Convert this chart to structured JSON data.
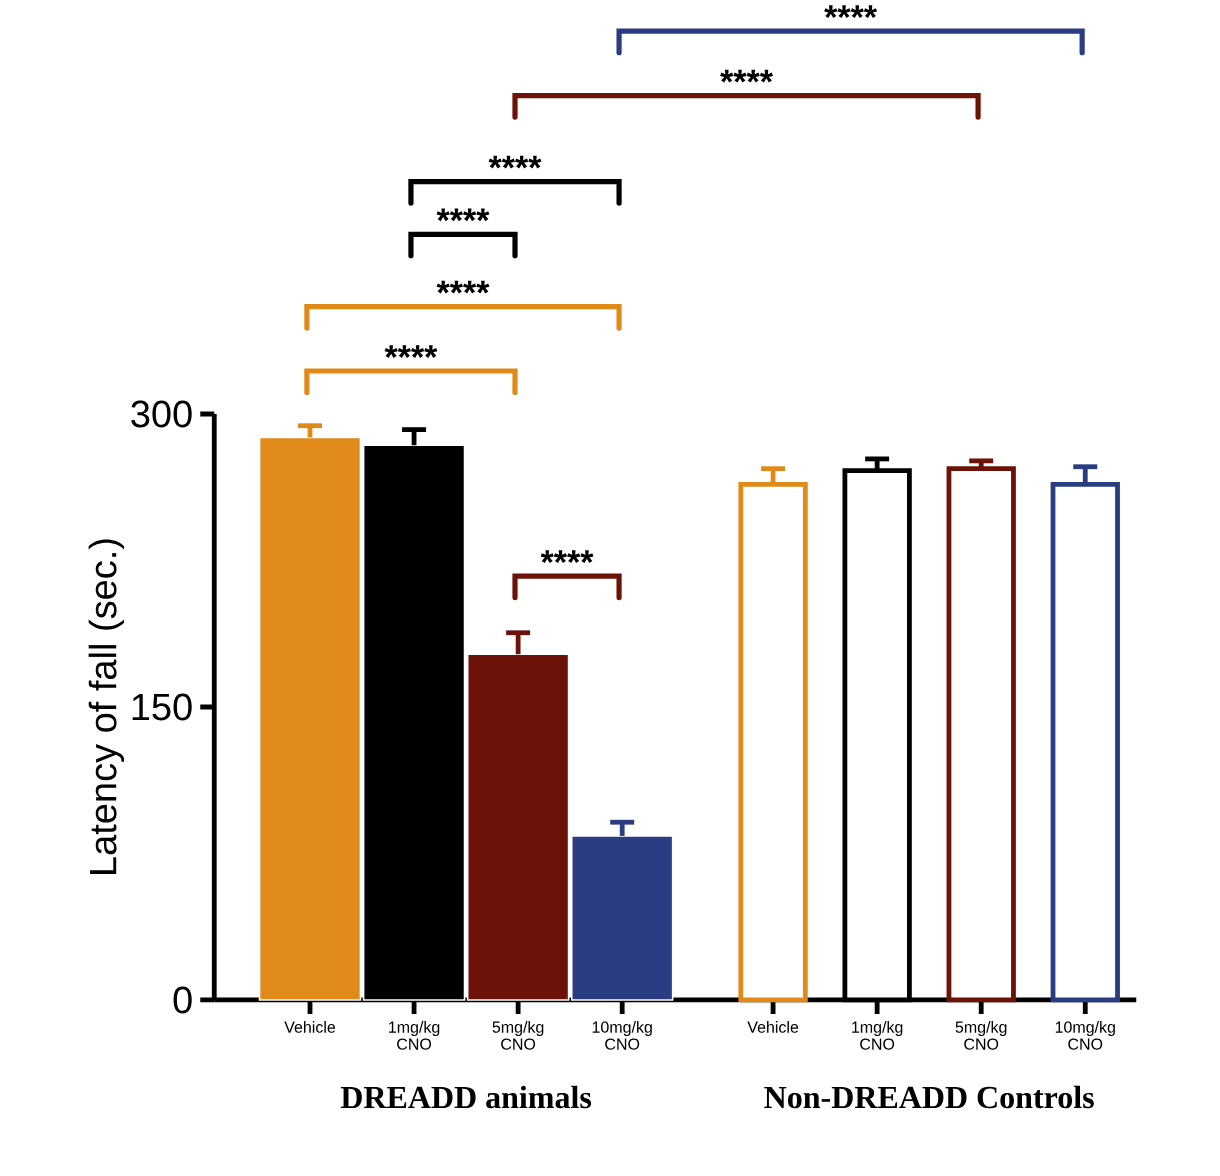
{
  "chart_data": {
    "type": "bar",
    "ylabel": "Latency of fall (sec.)",
    "categories": [
      "Vehicle",
      "1mg/kg CNO",
      "5mg/kg CNO",
      "10mg/kg CNO",
      "Vehicle",
      "1mg/kg CNO",
      "5mg/kg CNO",
      "10mg/kg CNO"
    ],
    "series": [
      {
        "values": [
          288,
          284,
          177,
          84,
          null,
          null,
          null,
          null
        ],
        "errors": [
          6,
          8,
          11,
          7,
          null,
          null,
          null,
          null
        ],
        "colors": [
          "#e08a1a",
          "#000000",
          "#6b1209",
          "#2b3d82",
          "#e08a1a",
          "#000000",
          "#6b1209",
          "#2b3d82"
        ]
      },
      {
        "values": [
          null,
          null,
          null,
          null,
          264,
          271,
          272,
          264
        ],
        "errors": [
          null,
          null,
          null,
          null,
          8,
          6,
          4,
          9
        ],
        "colors": [
          "#e08a1a",
          "#000000",
          "#6b1209",
          "#2b3d82",
          "#e08a1a",
          "#000000",
          "#6b1209",
          "#2b3d82"
        ]
      }
    ],
    "ylim": [
      0,
      300
    ],
    "yticks": [
      0,
      150,
      300
    ],
    "annotations": [
      "****",
      "****",
      "****",
      "****",
      "****",
      "****",
      "****",
      "DREADD animals",
      "Non-DREADD Controls"
    ]
  }
}
